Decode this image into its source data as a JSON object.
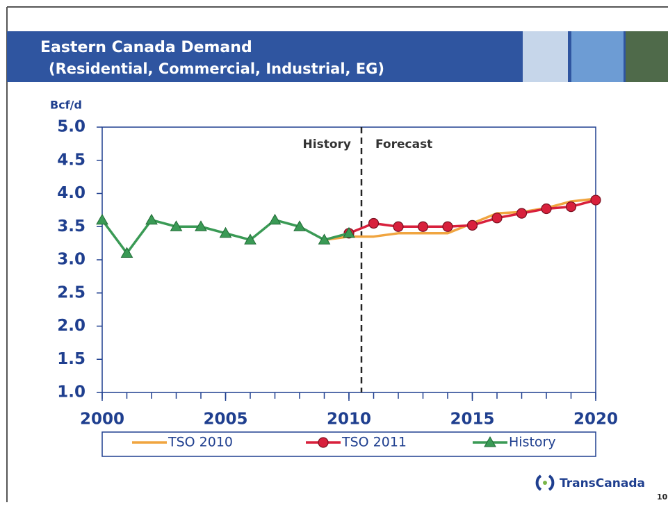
{
  "header": {
    "title": "Eastern Canada Demand",
    "subtitle": "(Residential, Commercial, Industrial, EG)"
  },
  "footer": {
    "logo": "TransCanada",
    "page": "10"
  },
  "chart_data": {
    "type": "line",
    "y_label": "Bcf/d",
    "annotations": [
      "History",
      "Forecast"
    ],
    "x": [
      2000,
      2001,
      2002,
      2003,
      2004,
      2005,
      2006,
      2007,
      2008,
      2009,
      2010,
      2011,
      2012,
      2013,
      2014,
      2015,
      2016,
      2017,
      2018,
      2019,
      2020
    ],
    "xlim": [
      2000,
      2020
    ],
    "xticks": [
      2000,
      2005,
      2010,
      2015,
      2020
    ],
    "ylim": [
      1,
      5
    ],
    "yticks": [
      {
        "value": 1,
        "label": "1.0"
      },
      {
        "value": 1.5,
        "label": "1.5"
      },
      {
        "value": 2,
        "label": "2.0"
      },
      {
        "value": 2.5,
        "label": "2.5"
      },
      {
        "value": 3,
        "label": "3.0"
      },
      {
        "value": 3.5,
        "label": "3.5"
      },
      {
        "value": 4,
        "label": "4.0"
      },
      {
        "value": 4.5,
        "label": "4.5"
      },
      {
        "value": 5,
        "label": "5.0"
      }
    ],
    "series": [
      {
        "name": "TSO 2010",
        "color": "#f0a540",
        "marker": "none",
        "values": [
          null,
          null,
          null,
          null,
          null,
          null,
          null,
          null,
          null,
          3.3,
          3.35,
          3.35,
          3.4,
          3.4,
          3.4,
          3.55,
          3.7,
          3.72,
          3.78,
          3.88,
          3.92
        ]
      },
      {
        "name": "TSO 2011",
        "color": "#d8203c",
        "marker": "circle",
        "values": [
          null,
          null,
          null,
          null,
          null,
          null,
          null,
          null,
          null,
          null,
          3.4,
          3.55,
          3.5,
          3.5,
          3.5,
          3.52,
          3.63,
          3.7,
          3.77,
          3.8,
          3.9
        ]
      },
      {
        "name": "History",
        "color": "#3a9a55",
        "marker": "triangle",
        "values": [
          3.6,
          3.1,
          3.6,
          3.5,
          3.5,
          3.4,
          3.3,
          3.6,
          3.5,
          3.3,
          3.4,
          null,
          null,
          null,
          null,
          null,
          null,
          null,
          null,
          null,
          null
        ]
      }
    ]
  }
}
